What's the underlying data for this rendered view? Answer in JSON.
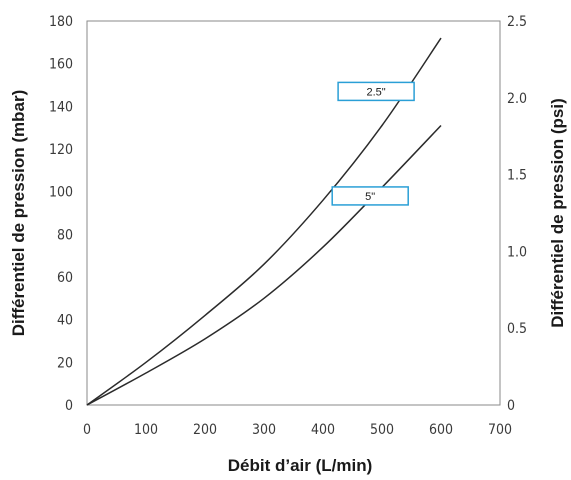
{
  "chart_data": {
    "type": "line",
    "xlabel": "Débit d’air (L/min)",
    "ylabel_left": "Différentiel de pression (mbar)",
    "ylabel_right": "Différentiel de pression (psi)",
    "xlim": [
      0,
      700
    ],
    "ylim_left": [
      0,
      180
    ],
    "ylim_right": [
      0,
      2.5
    ],
    "x_ticks": [
      "0",
      "100",
      "200",
      "300",
      "400",
      "500",
      "600",
      "700"
    ],
    "y_ticks_left": [
      "0",
      "20",
      "40",
      "60",
      "80",
      "100",
      "120",
      "140",
      "160",
      "180"
    ],
    "y_ticks_right": [
      "0",
      "0.5",
      "1.0",
      "1.5",
      "2.0",
      "2.5"
    ],
    "grid": false,
    "series": [
      {
        "name": "2.5\"",
        "color": "#2b2b2b",
        "x": [
          0,
          100,
          200,
          300,
          400,
          500,
          600
        ],
        "y": [
          0,
          20,
          42,
          66,
          96,
          131,
          172
        ]
      },
      {
        "name": "5\"",
        "color": "#2b2b2b",
        "x": [
          0,
          100,
          200,
          300,
          400,
          500,
          600
        ],
        "y": [
          0,
          15,
          31,
          50,
          74,
          102,
          131
        ]
      }
    ],
    "annotations": [
      {
        "text": "2.5\"",
        "x": 490,
        "y": 147,
        "box_color": "#2a9fd6"
      },
      {
        "text": "5\"",
        "x": 480,
        "y": 98,
        "box_color": "#2a9fd6"
      }
    ]
  }
}
